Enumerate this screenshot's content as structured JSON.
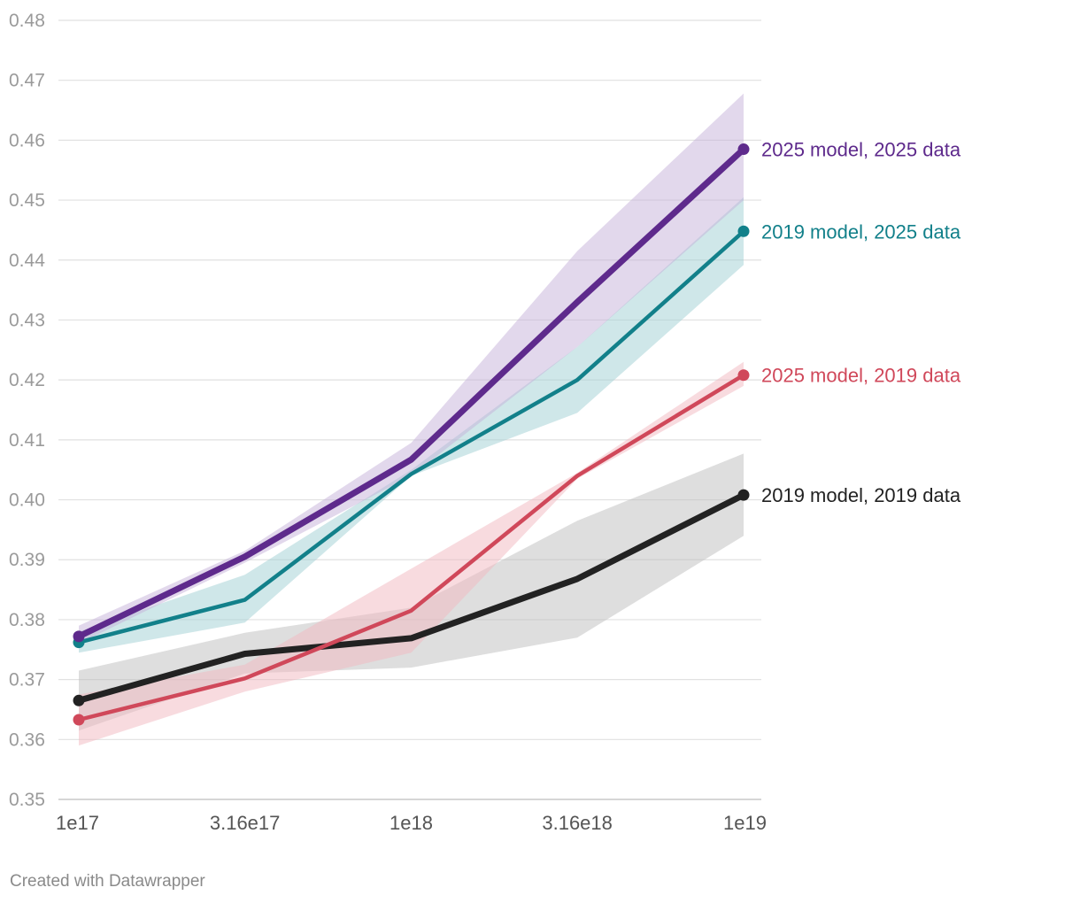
{
  "chart_data": {
    "type": "line",
    "title": "",
    "xlabel": "",
    "ylabel": "",
    "x": [
      1e+17,
      3.16e+17,
      1e+18,
      3.16e+18,
      1e+19
    ],
    "x_tick_labels": [
      "1e17",
      "3.16e17",
      "1e18",
      "3.16e18",
      "1e19"
    ],
    "x_scale": "log",
    "ylim": [
      0.35,
      0.48
    ],
    "y_ticks": [
      "0.35",
      "0.36",
      "0.37",
      "0.38",
      "0.39",
      "0.40",
      "0.41",
      "0.42",
      "0.43",
      "0.44",
      "0.45",
      "0.46",
      "0.47",
      "0.48"
    ],
    "grid": "horizontal",
    "legend": "direct labels at line ends",
    "series": [
      {
        "name": "2019 model, 2019 data",
        "color": "#222222",
        "band_color": "#bdbdbd",
        "values": [
          0.3665,
          0.3743,
          0.3769,
          0.3868,
          0.4008
        ],
        "lower": [
          0.3615,
          0.371,
          0.372,
          0.377,
          0.394
        ],
        "upper": [
          0.3715,
          0.3778,
          0.382,
          0.3965,
          0.4077
        ]
      },
      {
        "name": "2025 model, 2019 data",
        "color": "#d0485a",
        "band_color": "#f2b8c0",
        "values": [
          0.3633,
          0.3702,
          0.3815,
          0.404,
          0.4208
        ],
        "lower": [
          0.359,
          0.368,
          0.3745,
          0.4035,
          0.419
        ],
        "upper": [
          0.3675,
          0.3725,
          0.3885,
          0.4045,
          0.423
        ]
      },
      {
        "name": "2019 model, 2025 data",
        "color": "#12808a",
        "band_color": "#9fd0d4",
        "values": [
          0.3762,
          0.3833,
          0.4043,
          0.42,
          0.4448
        ],
        "lower": [
          0.3745,
          0.3795,
          0.404,
          0.4145,
          0.4392
        ],
        "upper": [
          0.378,
          0.3875,
          0.405,
          0.4255,
          0.4505
        ]
      },
      {
        "name": "2025 model, 2025 data",
        "color": "#5e2a8c",
        "band_color": "#c5b2da",
        "values": [
          0.3772,
          0.3905,
          0.4067,
          0.433,
          0.4585
        ],
        "lower": [
          0.376,
          0.3895,
          0.404,
          0.4255,
          0.45
        ],
        "upper": [
          0.379,
          0.3915,
          0.4095,
          0.4415,
          0.4678
        ]
      }
    ]
  },
  "footer": {
    "credit": "Created with Datawrapper"
  }
}
